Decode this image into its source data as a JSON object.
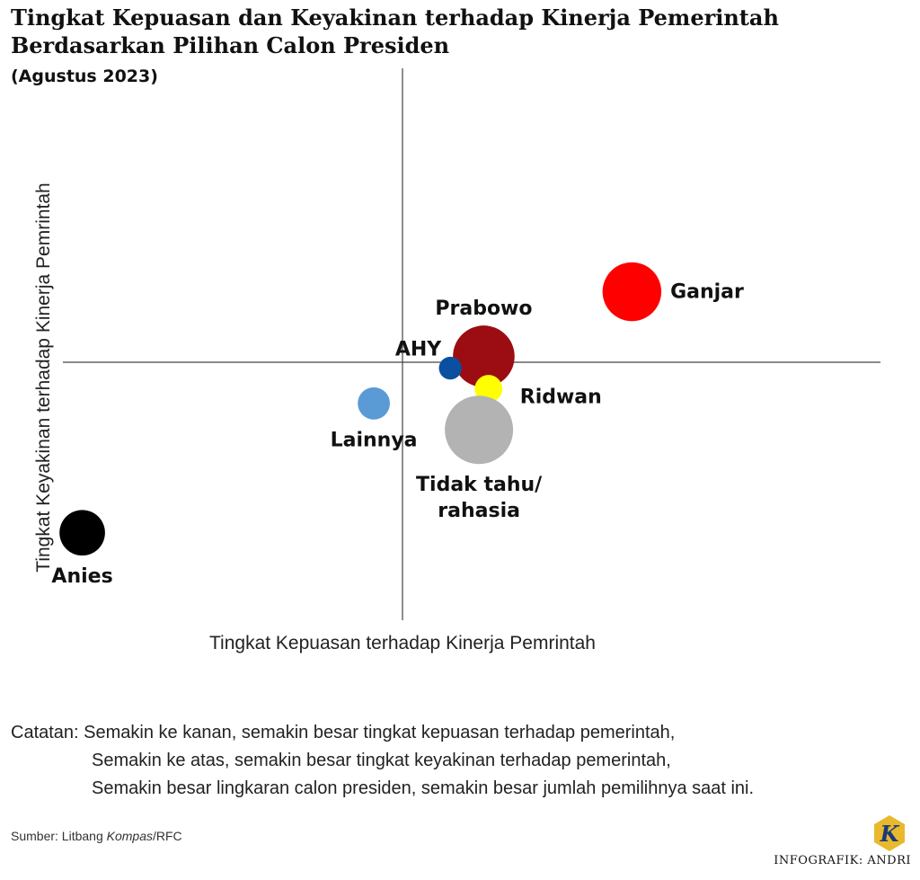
{
  "header": {
    "title_line1": "Tingkat Kepuasan dan Keyakinan terhadap Kinerja Pemerintah",
    "title_line2": "Berdasarkan Pilihan Calon Presiden",
    "subtitle": "(Agustus 2023)"
  },
  "chart_data": {
    "type": "scatter",
    "xlabel": "Tingkat Kepuasan terhadap Kinerja Pemrintah",
    "ylabel": "Tingkat Keyakinan terhadap Kinerja Pemrintah",
    "xlim": [
      -1,
      1
    ],
    "ylim": [
      -1,
      1
    ],
    "grid": false,
    "points": [
      {
        "name": "Ganjar",
        "x": 0.48,
        "y": 0.24,
        "size": 1.0,
        "color": "#ff0000",
        "label_pos": "right"
      },
      {
        "name": "Prabowo",
        "x": 0.17,
        "y": 0.02,
        "size": 1.1,
        "color": "#9b0d12",
        "label_pos": "top"
      },
      {
        "name": "AHY",
        "x": 0.1,
        "y": -0.02,
        "size": 0.15,
        "color": "#0a4fa0",
        "label_pos": "top-left"
      },
      {
        "name": "Ridwan",
        "x": 0.18,
        "y": -0.09,
        "size": 0.22,
        "color": "#ffff00",
        "label_pos": "bottom-right"
      },
      {
        "name": "Tidak tahu/\nrahasia",
        "x": 0.16,
        "y": -0.23,
        "size": 1.35,
        "color": "#b3b3b3",
        "label_pos": "bottom"
      },
      {
        "name": "Lainnya",
        "x": -0.06,
        "y": -0.14,
        "size": 0.3,
        "color": "#5b9bd5",
        "label_pos": "bottom"
      },
      {
        "name": "Anies",
        "x": -0.67,
        "y": -0.58,
        "size": 0.6,
        "color": "#000000",
        "label_pos": "bottom"
      }
    ]
  },
  "notes": {
    "line1": "Catatan: Semakin ke kanan, semakin besar tingkat kepuasan terhadap pemerintah,",
    "line2": "Semakin ke atas, semakin besar tingkat keyakinan terhadap pemerintah,",
    "line3": "Semakin besar lingkaran calon presiden, semakin besar jumlah pemilihnya saat ini."
  },
  "source": {
    "prefix": "Sumber: Litbang ",
    "italic": "Kompas",
    "suffix": "/RFC"
  },
  "logo": {
    "letter": "K",
    "color": "#e8b92c"
  },
  "credit": "INFOGRAFIK: ANDRI"
}
